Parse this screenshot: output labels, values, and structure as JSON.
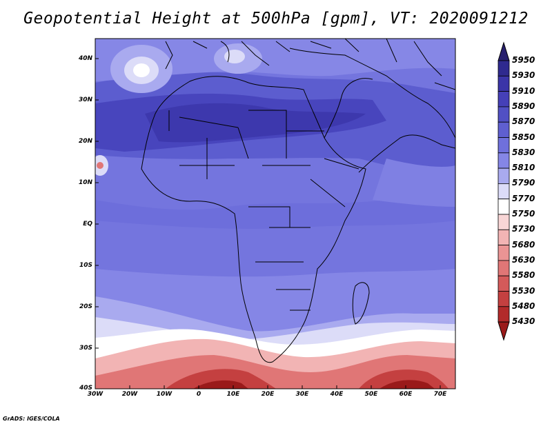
{
  "title": "Geopotential Height at 500hPa [gpm], VT: 2020091212",
  "credit": "GrADS: IGES/COLA",
  "lat_ticks": [
    "40N",
    "30N",
    "20N",
    "10N",
    "EQ",
    "10S",
    "20S",
    "30S",
    "40S"
  ],
  "lon_ticks": [
    "30W",
    "20W",
    "10W",
    "0",
    "10E",
    "20E",
    "30E",
    "40E",
    "50E",
    "60E",
    "70E"
  ],
  "colorbar": {
    "levels": [
      "5950",
      "5930",
      "5910",
      "5890",
      "5870",
      "5850",
      "5830",
      "5810",
      "5790",
      "5770",
      "5750",
      "5730",
      "5680",
      "5630",
      "5580",
      "5530",
      "5480",
      "5430"
    ],
    "colors": [
      "#28206e",
      "#2f2a8f",
      "#3b35a8",
      "#4540b8",
      "#5150c4",
      "#5f5fd0",
      "#6f70dc",
      "#8586e6",
      "#a9aaef",
      "#dcdcf8",
      "#ffffff",
      "#f8d6d6",
      "#f2b4b4",
      "#ea9494",
      "#e07676",
      "#d45a5a",
      "#c44040",
      "#b22a2a",
      "#9a1a1a"
    ]
  },
  "map": {
    "region": "Africa",
    "lon_range": [
      "30W",
      "70E"
    ],
    "lat_range": [
      "40S",
      "45N"
    ]
  }
}
